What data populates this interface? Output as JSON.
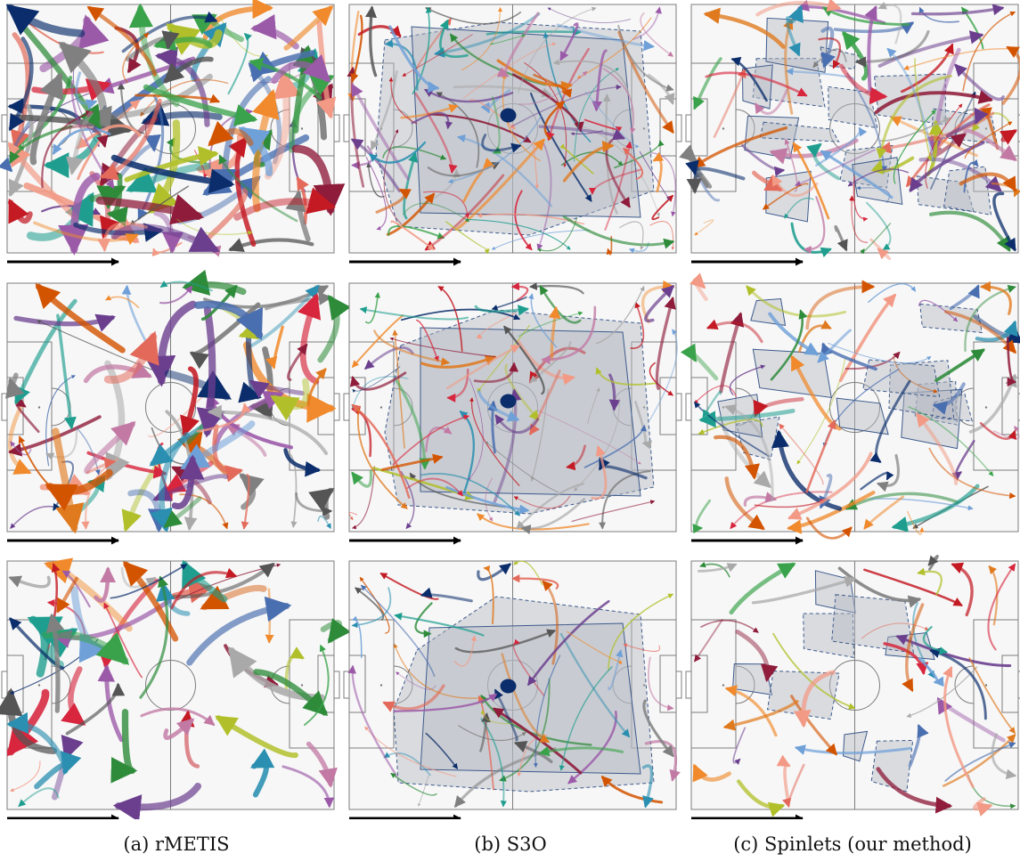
{
  "figure": {
    "columns": [
      {
        "caption": "(a) rMETIS",
        "method": "rMETIS",
        "style": "long-thick"
      },
      {
        "caption": "(b) S3O",
        "method": "S3O",
        "style": "single-hull"
      },
      {
        "caption": "(c) Spinlets (our method)",
        "method": "Spinlets",
        "style": "many-hulls"
      }
    ],
    "rows": [
      {
        "density": 1.0
      },
      {
        "density": 0.75
      },
      {
        "density": 0.5
      }
    ],
    "colors": {
      "pitch_bg": "#f7f7f7",
      "pitch_line": "#7d7d7d",
      "hull_fill": "#b4b8c2",
      "hull_edge": "#3d5a8c",
      "arrow": "#000000",
      "palette": [
        "#2e8b3a",
        "#3aa24a",
        "#1f9e8f",
        "#2a8fb0",
        "#c41a24",
        "#d7263d",
        "#8e1c3a",
        "#e36a5a",
        "#f29a85",
        "#555555",
        "#808080",
        "#a9a9a9",
        "#6b3f8e",
        "#9b5aa8",
        "#c27aa5",
        "#e07a1f",
        "#d35400",
        "#f08a2c",
        "#4a6fb0",
        "#6fa0d8",
        "#0b2d6b",
        "#b1c02a"
      ]
    }
  }
}
